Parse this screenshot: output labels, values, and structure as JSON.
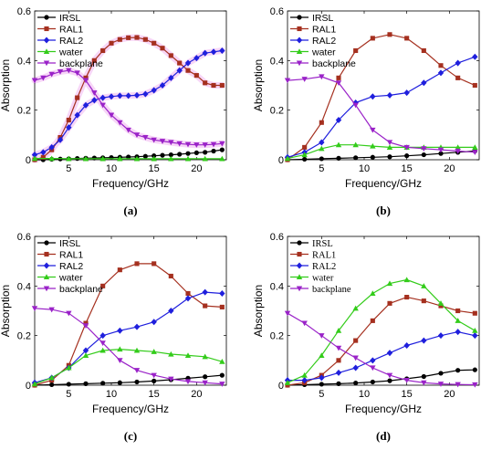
{
  "colors": {
    "IRSL": "#000000",
    "RAL1": "#a5301f",
    "RAL2": "#1f1fdd",
    "water": "#33cc1a",
    "backplane": "#9a22c8",
    "pink_glow": "#f2b6f2"
  },
  "chart_data": [
    {
      "type": "line",
      "panel_label": "(a)",
      "xlabel": "Frequency/GHz",
      "ylabel": "Absorption",
      "xlim": [
        1,
        23.5
      ],
      "ylim": [
        0,
        0.6
      ],
      "xticks": [
        5,
        10,
        15,
        20
      ],
      "yticks": [
        0,
        0.2,
        0.4,
        0.6
      ],
      "legend_placement": "top-left",
      "legend_font": "sans",
      "grid": false,
      "series": [
        {
          "name": "IRSL",
          "marker": "circle",
          "x": [
            1,
            2,
            3,
            4,
            5,
            6,
            7,
            8,
            9,
            10,
            11,
            12,
            13,
            14,
            15,
            16,
            17,
            18,
            19,
            20,
            21,
            22,
            23
          ],
          "y": [
            0,
            0,
            0.002,
            0.003,
            0.004,
            0.005,
            0.006,
            0.007,
            0.008,
            0.009,
            0.01,
            0.011,
            0.012,
            0.014,
            0.016,
            0.018,
            0.02,
            0.022,
            0.025,
            0.028,
            0.03,
            0.035,
            0.04
          ]
        },
        {
          "name": "RAL1",
          "marker": "square",
          "x": [
            1,
            2,
            3,
            4,
            5,
            6,
            7,
            8,
            9,
            10,
            11,
            12,
            13,
            14,
            15,
            16,
            17,
            18,
            19,
            20,
            21,
            22,
            23
          ],
          "y": [
            0,
            0.01,
            0.04,
            0.09,
            0.16,
            0.25,
            0.33,
            0.4,
            0.44,
            0.47,
            0.485,
            0.492,
            0.493,
            0.485,
            0.47,
            0.45,
            0.42,
            0.39,
            0.36,
            0.34,
            0.31,
            0.3,
            0.3
          ]
        },
        {
          "name": "RAL2",
          "marker": "diamond",
          "x": [
            1,
            2,
            3,
            4,
            5,
            6,
            7,
            8,
            9,
            10,
            11,
            12,
            13,
            14,
            15,
            16,
            17,
            18,
            19,
            20,
            21,
            22,
            23
          ],
          "y": [
            0.02,
            0.03,
            0.05,
            0.08,
            0.13,
            0.18,
            0.22,
            0.24,
            0.25,
            0.255,
            0.258,
            0.258,
            0.26,
            0.265,
            0.28,
            0.3,
            0.33,
            0.36,
            0.39,
            0.41,
            0.43,
            0.435,
            0.44
          ]
        },
        {
          "name": "water",
          "marker": "triangle",
          "x": [
            1,
            3,
            5,
            7,
            9,
            11,
            13,
            15,
            17,
            19,
            21,
            23
          ],
          "y": [
            0.005,
            0.005,
            0.004,
            0.004,
            0.004,
            0.004,
            0.004,
            0.004,
            0.004,
            0.004,
            0.004,
            0.004
          ]
        },
        {
          "name": "backplane",
          "marker": "triangle-down",
          "x": [
            1,
            2,
            3,
            4,
            5,
            6,
            7,
            8,
            9,
            10,
            11,
            12,
            13,
            14,
            15,
            16,
            17,
            18,
            19,
            20,
            21,
            22,
            23
          ],
          "y": [
            0.32,
            0.33,
            0.345,
            0.355,
            0.36,
            0.35,
            0.32,
            0.27,
            0.22,
            0.18,
            0.15,
            0.12,
            0.1,
            0.09,
            0.08,
            0.075,
            0.07,
            0.065,
            0.062,
            0.06,
            0.06,
            0.062,
            0.065
          ]
        }
      ]
    },
    {
      "type": "line",
      "panel_label": "(b)",
      "xlabel": "Frequency/GHz",
      "ylabel": "Absorption",
      "xlim": [
        1,
        23.5
      ],
      "ylim": [
        0,
        0.6
      ],
      "xticks": [
        5,
        10,
        15,
        20
      ],
      "yticks": [
        0,
        0.2,
        0.4,
        0.6
      ],
      "legend_placement": "top-left",
      "legend_font": "sans",
      "grid": false,
      "series": [
        {
          "name": "IRSL",
          "marker": "circle",
          "x": [
            1,
            3,
            5,
            7,
            9,
            11,
            13,
            15,
            17,
            19,
            21,
            23
          ],
          "y": [
            0,
            0.002,
            0.004,
            0.006,
            0.008,
            0.01,
            0.012,
            0.016,
            0.02,
            0.025,
            0.03,
            0.035
          ]
        },
        {
          "name": "RAL1",
          "marker": "square",
          "x": [
            1,
            3,
            5,
            7,
            9,
            11,
            13,
            15,
            17,
            19,
            21,
            23
          ],
          "y": [
            0,
            0.05,
            0.15,
            0.33,
            0.44,
            0.49,
            0.505,
            0.49,
            0.44,
            0.38,
            0.33,
            0.3
          ]
        },
        {
          "name": "RAL2",
          "marker": "diamond",
          "x": [
            1,
            3,
            5,
            7,
            9,
            11,
            13,
            15,
            17,
            19,
            21,
            23
          ],
          "y": [
            0.01,
            0.03,
            0.07,
            0.16,
            0.23,
            0.255,
            0.26,
            0.27,
            0.31,
            0.35,
            0.39,
            0.415
          ]
        },
        {
          "name": "water",
          "marker": "triangle",
          "x": [
            1,
            3,
            5,
            7,
            9,
            11,
            13,
            15,
            17,
            19,
            21,
            23
          ],
          "y": [
            0.005,
            0.02,
            0.045,
            0.06,
            0.06,
            0.055,
            0.05,
            0.05,
            0.05,
            0.05,
            0.05,
            0.05
          ]
        },
        {
          "name": "backplane",
          "marker": "triangle-down",
          "x": [
            1,
            3,
            5,
            7,
            9,
            11,
            13,
            15,
            17,
            19,
            21,
            23
          ],
          "y": [
            0.32,
            0.325,
            0.335,
            0.31,
            0.22,
            0.12,
            0.07,
            0.05,
            0.045,
            0.04,
            0.035,
            0.03
          ]
        }
      ]
    },
    {
      "type": "line",
      "panel_label": "(c)",
      "xlabel": "Frequency/GHz",
      "ylabel": "Absorption",
      "xlim": [
        1,
        23.5
      ],
      "ylim": [
        0,
        0.6
      ],
      "xticks": [
        5,
        10,
        15,
        20
      ],
      "yticks": [
        0,
        0.2,
        0.4,
        0.6
      ],
      "legend_placement": "top-left",
      "legend_font": "sans",
      "grid": false,
      "series": [
        {
          "name": "IRSL",
          "marker": "circle",
          "x": [
            1,
            3,
            5,
            7,
            9,
            11,
            13,
            15,
            17,
            19,
            21,
            23
          ],
          "y": [
            0,
            0.002,
            0.004,
            0.006,
            0.008,
            0.01,
            0.013,
            0.017,
            0.022,
            0.028,
            0.034,
            0.04
          ]
        },
        {
          "name": "RAL1",
          "marker": "square",
          "x": [
            1,
            3,
            5,
            7,
            9,
            11,
            13,
            15,
            17,
            19,
            21,
            23
          ],
          "y": [
            0,
            0.02,
            0.08,
            0.25,
            0.4,
            0.465,
            0.49,
            0.49,
            0.44,
            0.37,
            0.32,
            0.315
          ]
        },
        {
          "name": "RAL2",
          "marker": "diamond",
          "x": [
            1,
            3,
            5,
            7,
            9,
            11,
            13,
            15,
            17,
            19,
            21,
            23
          ],
          "y": [
            0.01,
            0.03,
            0.07,
            0.14,
            0.2,
            0.22,
            0.235,
            0.255,
            0.3,
            0.35,
            0.375,
            0.37
          ]
        },
        {
          "name": "water",
          "marker": "triangle",
          "x": [
            1,
            3,
            5,
            7,
            9,
            11,
            13,
            15,
            17,
            19,
            21,
            23
          ],
          "y": [
            0.005,
            0.03,
            0.07,
            0.12,
            0.14,
            0.145,
            0.14,
            0.135,
            0.125,
            0.12,
            0.115,
            0.095
          ]
        },
        {
          "name": "backplane",
          "marker": "triangle-down",
          "x": [
            1,
            3,
            5,
            7,
            9,
            11,
            13,
            15,
            17,
            19,
            21,
            23
          ],
          "y": [
            0.31,
            0.305,
            0.29,
            0.24,
            0.17,
            0.1,
            0.06,
            0.04,
            0.025,
            0.015,
            0.01,
            0.005
          ]
        }
      ]
    },
    {
      "type": "line",
      "panel_label": "(d)",
      "xlabel": "Frequency/GHz",
      "ylabel": "Absorption",
      "xlim": [
        1,
        23.5
      ],
      "ylim": [
        0,
        0.6
      ],
      "xticks": [
        5,
        10,
        15,
        20
      ],
      "yticks": [
        0,
        0.2,
        0.4,
        0.6
      ],
      "legend_placement": "top-left",
      "legend_font": "serif",
      "grid": false,
      "series": [
        {
          "name": "IRSL",
          "marker": "circle",
          "x": [
            1,
            3,
            5,
            7,
            9,
            11,
            13,
            15,
            17,
            19,
            21,
            23
          ],
          "y": [
            0,
            0.002,
            0.004,
            0.006,
            0.009,
            0.013,
            0.018,
            0.026,
            0.035,
            0.048,
            0.06,
            0.062
          ]
        },
        {
          "name": "RAL1",
          "marker": "square",
          "x": [
            1,
            3,
            5,
            7,
            9,
            11,
            13,
            15,
            17,
            19,
            21,
            23
          ],
          "y": [
            0,
            0.01,
            0.04,
            0.1,
            0.18,
            0.26,
            0.33,
            0.355,
            0.34,
            0.32,
            0.3,
            0.29
          ]
        },
        {
          "name": "RAL2",
          "marker": "diamond",
          "x": [
            1,
            3,
            5,
            7,
            9,
            11,
            13,
            15,
            17,
            19,
            21,
            23
          ],
          "y": [
            0.02,
            0.02,
            0.03,
            0.05,
            0.07,
            0.1,
            0.13,
            0.16,
            0.18,
            0.2,
            0.215,
            0.2
          ]
        },
        {
          "name": "water",
          "marker": "triangle",
          "x": [
            1,
            3,
            5,
            7,
            9,
            11,
            13,
            15,
            17,
            19,
            21,
            23
          ],
          "y": [
            0.01,
            0.04,
            0.12,
            0.22,
            0.31,
            0.37,
            0.41,
            0.425,
            0.4,
            0.33,
            0.26,
            0.22
          ]
        },
        {
          "name": "backplane",
          "marker": "triangle-down",
          "x": [
            1,
            3,
            5,
            7,
            9,
            11,
            13,
            15,
            17,
            19,
            21,
            23
          ],
          "y": [
            0.29,
            0.25,
            0.2,
            0.15,
            0.11,
            0.07,
            0.04,
            0.02,
            0.01,
            0.005,
            0.003,
            0.002
          ]
        }
      ]
    }
  ]
}
